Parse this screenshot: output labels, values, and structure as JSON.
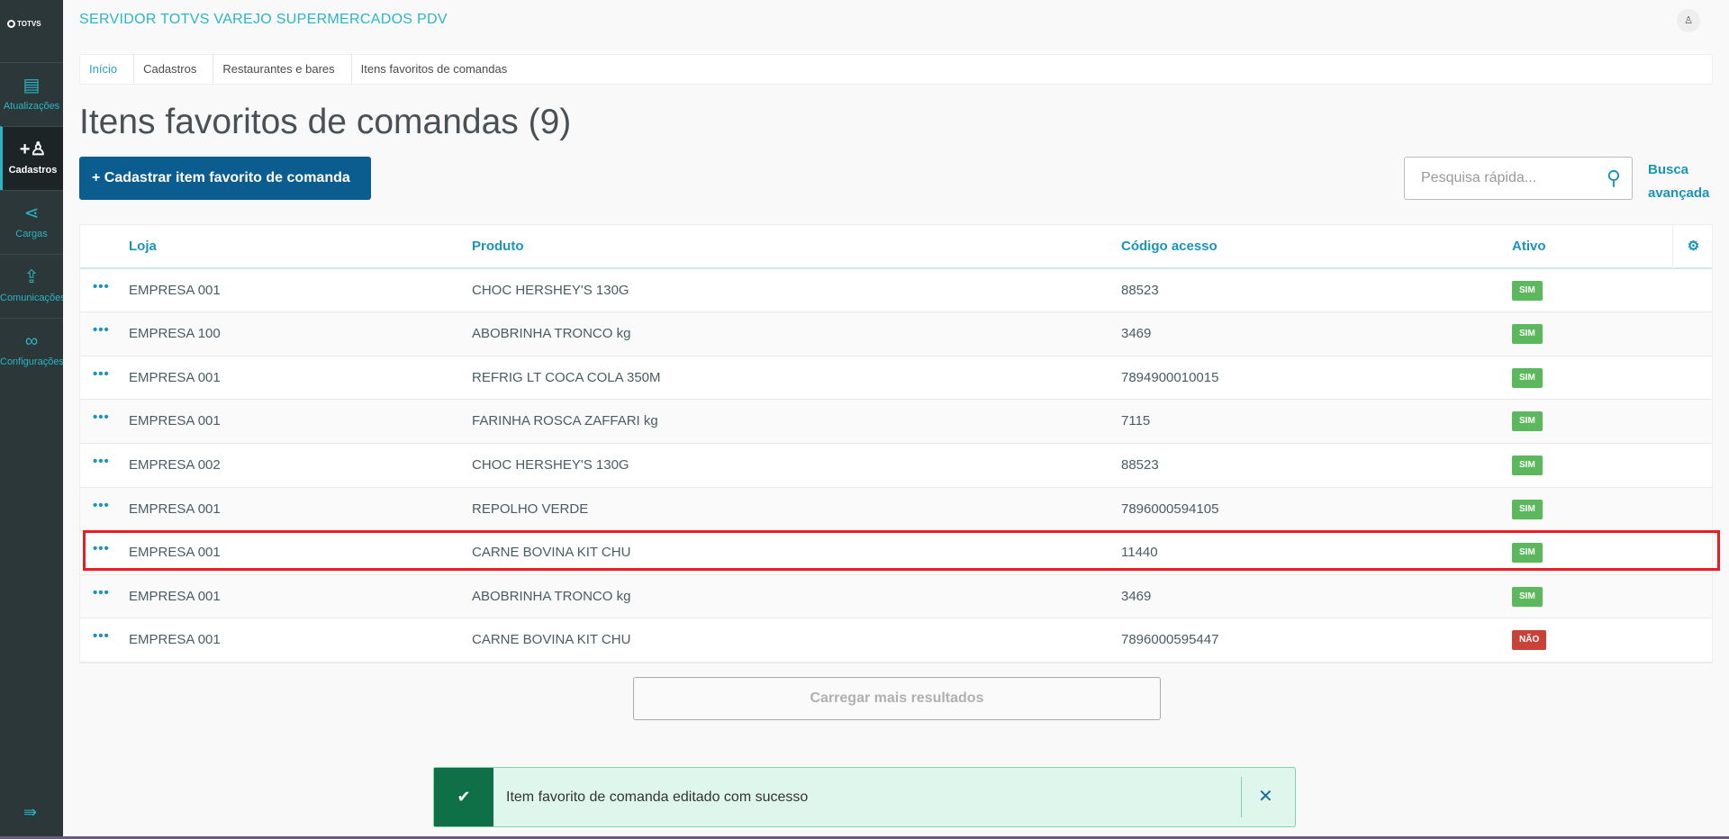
{
  "app": {
    "logo": "TOTVS",
    "title": "SERVIDOR TOTVS VAREJO SUPERMERCADOS PDV"
  },
  "sidebar": {
    "items": [
      {
        "label": "Atualizações",
        "icon": "server-icon"
      },
      {
        "label": "Cadastros",
        "icon": "add-user-icon",
        "active": true
      },
      {
        "label": "Cargas",
        "icon": "share-icon"
      },
      {
        "label": "Comunicações",
        "icon": "file-upload-icon"
      },
      {
        "label": "Configurações",
        "icon": "link-icon"
      }
    ]
  },
  "breadcrumb": [
    "Início",
    "Cadastros",
    "Restaurantes e bares",
    "Itens favoritos de comandas"
  ],
  "page": {
    "title": "Itens favoritos de comandas (9)",
    "add_label": "+  Cadastrar item favorito de comanda",
    "search_placeholder": "Pesquisa rápida...",
    "advanced_search": "Busca avançada"
  },
  "table": {
    "columns": [
      "Loja",
      "Produto",
      "Código acesso",
      "Ativo"
    ],
    "rows": [
      {
        "loja": "EMPRESA 001",
        "produto": "CHOC HERSHEY'S 130G",
        "codigo": "88523",
        "ativo": "SIM"
      },
      {
        "loja": "EMPRESA 100",
        "produto": "ABOBRINHA TRONCO kg",
        "codigo": "3469",
        "ativo": "SIM"
      },
      {
        "loja": "EMPRESA 001",
        "produto": "REFRIG LT COCA COLA 350M",
        "codigo": "7894900010015",
        "ativo": "SIM"
      },
      {
        "loja": "EMPRESA 001",
        "produto": "FARINHA ROSCA ZAFFARI kg",
        "codigo": "7115",
        "ativo": "SIM"
      },
      {
        "loja": "EMPRESA 002",
        "produto": "CHOC HERSHEY'S 130G",
        "codigo": "88523",
        "ativo": "SIM"
      },
      {
        "loja": "EMPRESA 001",
        "produto": "REPOLHO VERDE",
        "codigo": "7896000594105",
        "ativo": "SIM"
      },
      {
        "loja": "EMPRESA 001",
        "produto": "CARNE BOVINA KIT CHU",
        "codigo": "11440",
        "ativo": "SIM"
      },
      {
        "loja": "EMPRESA 001",
        "produto": "ABOBRINHA TRONCO kg",
        "codigo": "3469",
        "ativo": "SIM"
      },
      {
        "loja": "EMPRESA 001",
        "produto": "CARNE BOVINA KIT CHU",
        "codigo": "7896000595447",
        "ativo": "NÃO"
      }
    ]
  },
  "load_more": "Carregar mais resultados",
  "toast": {
    "message": "Item favorito de comanda editado com sucesso"
  },
  "colors": {
    "accent": "#29b6c5",
    "primary": "#0c5d8f",
    "sim": "#5cb85c",
    "nao": "#c9423a",
    "highlight": "#ed1c24"
  }
}
